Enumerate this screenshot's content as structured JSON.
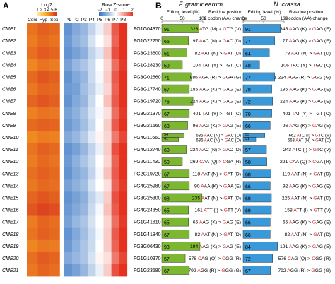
{
  "panel_a": {
    "letter": "A",
    "log2_legend": {
      "title": "Log2",
      "ticks": [
        "1",
        "2",
        "3",
        "4",
        "5",
        "6"
      ]
    },
    "zscore_legend": {
      "title": "Row Z-score",
      "ticks": [
        "−2",
        "−1",
        "0",
        "1",
        "2"
      ]
    },
    "columns_left": [
      "Coni",
      "Hyp",
      "Sex"
    ],
    "columns_right": [
      "P1",
      "P2",
      "P3",
      "P4",
      "P5",
      "P6",
      "P7",
      "P8"
    ],
    "rows": [
      "CME1",
      "CME2",
      "CME3",
      "CME4",
      "CME5",
      "CME6",
      "CME7",
      "CME8",
      "CME9",
      "CME10",
      "CME11",
      "CME12",
      "CME13",
      "CME14",
      "CME15",
      "CME16",
      "CME17",
      "CME18",
      "CME19",
      "CME20",
      "CME21"
    ],
    "log2_values": [
      [
        4.6,
        5.0,
        4.8
      ],
      [
        4.4,
        4.8,
        4.6
      ],
      [
        4.7,
        5.1,
        4.9
      ],
      [
        4.2,
        4.6,
        4.4
      ],
      [
        4.8,
        5.2,
        5.0
      ],
      [
        4.5,
        4.9,
        4.8
      ],
      [
        4.9,
        5.2,
        5.0
      ],
      [
        4.3,
        4.6,
        4.5
      ],
      [
        4.8,
        5.0,
        4.9
      ],
      [
        4.1,
        4.4,
        4.3
      ],
      [
        4.6,
        5.0,
        4.8
      ],
      [
        4.4,
        4.8,
        4.6
      ],
      [
        4.7,
        5.0,
        4.8
      ],
      [
        4.5,
        4.8,
        4.7
      ],
      [
        4.9,
        5.2,
        5.0
      ],
      [
        5.2,
        5.6,
        5.4
      ],
      [
        4.4,
        4.9,
        4.7
      ],
      [
        4.6,
        5.0,
        4.8
      ],
      [
        4.2,
        4.5,
        4.4
      ],
      [
        4.7,
        5.1,
        4.9
      ],
      [
        4.5,
        4.9,
        4.7
      ]
    ],
    "zscore_values": [
      [
        -1.5,
        -1.2,
        -1.0,
        -0.6,
        -0.2,
        0.5,
        1.6,
        2.0
      ],
      [
        -1.4,
        -1.1,
        -0.9,
        -0.4,
        0.0,
        0.3,
        1.5,
        2.0
      ],
      [
        -1.5,
        -1.3,
        -1.1,
        -0.6,
        -0.3,
        0.6,
        1.7,
        2.0
      ],
      [
        -1.3,
        -1.0,
        -0.8,
        -0.5,
        0.0,
        0.4,
        1.4,
        1.9
      ],
      [
        -1.5,
        -1.2,
        -1.0,
        -0.5,
        -0.1,
        0.5,
        1.6,
        2.0
      ],
      [
        -1.4,
        -1.3,
        -0.9,
        -0.6,
        -0.2,
        0.4,
        1.5,
        2.0
      ],
      [
        -1.5,
        -1.2,
        -1.0,
        -0.5,
        0.0,
        0.6,
        1.6,
        2.0
      ],
      [
        -1.3,
        -1.1,
        -0.8,
        -0.4,
        -0.1,
        0.3,
        1.4,
        1.9
      ],
      [
        -1.4,
        -1.2,
        -0.9,
        -0.5,
        0.0,
        0.5,
        1.6,
        2.0
      ],
      [
        -1.2,
        -1.0,
        -0.7,
        -0.3,
        0.1,
        0.4,
        1.3,
        1.8
      ],
      [
        -1.5,
        -1.3,
        -1.0,
        -0.6,
        -0.2,
        0.5,
        1.7,
        2.0
      ],
      [
        -1.4,
        -1.1,
        -0.8,
        -0.5,
        0.0,
        0.4,
        1.5,
        2.0
      ],
      [
        -1.5,
        -1.2,
        -1.0,
        -0.6,
        -0.1,
        0.6,
        1.6,
        2.0
      ],
      [
        -1.3,
        -1.1,
        -0.9,
        -0.4,
        0.0,
        0.3,
        1.5,
        1.9
      ],
      [
        -1.5,
        -1.3,
        -1.1,
        -0.6,
        -0.3,
        0.5,
        1.7,
        2.0
      ],
      [
        -1.4,
        -1.2,
        -1.0,
        -0.5,
        -0.1,
        0.6,
        1.6,
        2.0
      ],
      [
        -1.3,
        -1.0,
        -0.8,
        -0.4,
        0.0,
        0.4,
        1.4,
        1.9
      ],
      [
        -1.5,
        -1.2,
        -0.9,
        -0.5,
        -0.1,
        0.5,
        1.6,
        2.0
      ],
      [
        -1.4,
        -1.1,
        -0.8,
        -0.5,
        0.0,
        0.5,
        1.5,
        2.0
      ],
      [
        -1.2,
        -1.0,
        -0.8,
        -0.4,
        0.1,
        0.3,
        1.3,
        1.8
      ],
      [
        -1.5,
        -1.3,
        -1.0,
        -0.6,
        -0.2,
        0.5,
        1.7,
        2.0
      ]
    ]
  },
  "panel_b": {
    "letter": "B",
    "species_fg": "F. graminearum",
    "species_nc": "N. crassa",
    "header_level": "Editing level (%)",
    "header_residue": "Residue position",
    "header_change": "& codon (AA) change",
    "axis_ticks": [
      "0",
      "50",
      "100"
    ],
    "bar_color_fg": "#7cb82f",
    "bar_color_nc": "#3a9ad9",
    "rows": [
      {
        "gene": "FG1G04370",
        "fg_level": 91,
        "fg_pos": "323",
        "fg_from": "ATG",
        "fg_from_aa": "(M)",
        "fg_to": "GTG",
        "fg_to_aa": "(V)",
        "nc_level": 91,
        "nc_pos": "345",
        "nc_from": "AAG",
        "nc_from_aa": "(K)",
        "nc_to": "GAG",
        "nc_to_aa": "(E)"
      },
      {
        "gene": "FG1G22250",
        "fg_level": 65,
        "fg_pos": "97",
        "fg_from": "AAC",
        "fg_from_aa": "(N)",
        "fg_to": "GAC",
        "fg_to_aa": "(D)",
        "nc_level": 77,
        "nc_pos": "77",
        "nc_from": "AAG",
        "nc_from_aa": "(K)",
        "nc_to": "GAG",
        "nc_to_aa": "(E)"
      },
      {
        "gene": "FG3G23600",
        "fg_level": 61,
        "fg_pos": "82",
        "fg_from": "AAT",
        "fg_from_aa": "(N)",
        "fg_to": "GAT",
        "fg_to_aa": "(D)",
        "nc_level": 64,
        "nc_pos": "78",
        "nc_from": "AAT",
        "nc_from_aa": "(N)",
        "nc_to": "GAT",
        "nc_to_aa": "(D)"
      },
      {
        "gene": "FG1G28230",
        "fg_level": 50,
        "fg_pos": "104",
        "fg_from": "TAT",
        "fg_from_aa": "(Y)",
        "fg_to": "TGT",
        "fg_to_aa": "(C)",
        "nc_level": 40,
        "nc_pos": "106",
        "nc_from": "TAC",
        "nc_from_aa": "(Y)",
        "nc_to": "TGC",
        "nc_to_aa": "(C)"
      },
      {
        "gene": "FG3G02660",
        "fg_level": 71,
        "fg_pos": "986",
        "fg_from": "AGA",
        "fg_from_aa": "(R)",
        "fg_to": "GGA",
        "fg_to_aa": "(G)",
        "nc_level": 77,
        "nc_pos": "1 224",
        "nc_from": "AGG",
        "nc_from_aa": "(R)",
        "nc_to": "GGG",
        "nc_to_aa": "(G)"
      },
      {
        "gene": "FG3G17740",
        "fg_level": 67,
        "fg_pos": "185",
        "fg_from": "AAG",
        "fg_from_aa": "(K)",
        "fg_to": "GAG",
        "fg_to_aa": "(E)",
        "nc_level": 70,
        "nc_pos": "185",
        "nc_from": "AAG",
        "nc_from_aa": "(K)",
        "nc_to": "GAG",
        "nc_to_aa": "(E)"
      },
      {
        "gene": "FG3G19720",
        "fg_level": 76,
        "fg_pos": "224",
        "fg_from": "AAG",
        "fg_from_aa": "(K)",
        "fg_to": "GAG",
        "fg_to_aa": "(E)",
        "nc_level": 72,
        "nc_pos": "224",
        "nc_from": "AAG",
        "nc_from_aa": "(K)",
        "nc_to": "GAG",
        "nc_to_aa": "(E)"
      },
      {
        "gene": "FG3G21370",
        "fg_level": 67,
        "fg_pos": "401",
        "fg_from": "TAT",
        "fg_from_aa": "(Y)",
        "fg_to": "TGT",
        "fg_to_aa": "(C)",
        "nc_level": 70,
        "nc_pos": "401",
        "nc_from": "TAT",
        "nc_from_aa": "(Y)",
        "nc_to": "TGT",
        "nc_to_aa": "(C)"
      },
      {
        "gene": "FG3G21560",
        "fg_level": 63,
        "fg_pos": "96",
        "fg_from": "AAG",
        "fg_from_aa": "(K)",
        "fg_to": "GAG",
        "fg_to_aa": "(E)",
        "nc_level": 66,
        "nc_pos": "96",
        "nc_from": "AAG",
        "nc_from_aa": "(K)",
        "nc_to": "GAG",
        "nc_to_aa": "(E)"
      },
      {
        "gene": "FG4G11660",
        "fg_level": 54,
        "fg_level2": 41,
        "fg_pos": "635",
        "fg_from": "AAC",
        "fg_from_aa": "(N)",
        "fg_to": "GAC",
        "fg_to_aa": "(D)",
        "fg_pos2": "636",
        "fg_from2": "AAC",
        "fg_from_aa2": "(N)",
        "fg_to2": "GAC",
        "fg_to_aa2": "(D)",
        "nc_level": 53,
        "nc_level2": 31,
        "nc_pos": "662",
        "nc_from": "ATC",
        "nc_from_aa": "(I)",
        "nc_to": "GTC",
        "nc_to_aa": "(V)",
        "nc_pos2": "663",
        "nc_from2": "AAT",
        "nc_from_aa2": "(N)",
        "nc_to2": "GAT",
        "nc_to_aa2": "(D)"
      },
      {
        "gene": "FG4G12740",
        "fg_level": 60,
        "fg_pos": "224",
        "fg_from": "AAC",
        "fg_from_aa": "(N)",
        "fg_to": "GAC",
        "fg_to_aa": "(D)",
        "nc_level": 57,
        "nc_pos": "243",
        "nc_from": "ATC",
        "nc_from_aa": "(I)",
        "nc_to": "GTC",
        "nc_to_aa": "(V)"
      },
      {
        "gene": "FG2G11430",
        "fg_level": 50,
        "fg_pos": "269",
        "fg_from": "CAA",
        "fg_from_aa": "(Q)",
        "fg_to": "CGA",
        "fg_to_aa": "(R)",
        "nc_level": 58,
        "nc_pos": "221",
        "nc_from": "CAA",
        "nc_from_aa": "(Q)",
        "nc_to": "CGA",
        "nc_to_aa": "(R)"
      },
      {
        "gene": "FG2G19720",
        "fg_level": 67,
        "fg_pos": "118",
        "fg_from": "AAT",
        "fg_from_aa": "(N)",
        "fg_to": "GAT",
        "fg_to_aa": "(D)",
        "nc_level": 68,
        "nc_pos": "119",
        "nc_from": "AAT",
        "nc_from_aa": "(N)",
        "nc_to": "GAT",
        "nc_to_aa": "(D)"
      },
      {
        "gene": "FG4G25980",
        "fg_level": 67,
        "fg_pos": "90",
        "fg_from": "AAA",
        "fg_from_aa": "(K)",
        "fg_to": "GAA",
        "fg_to_aa": "(E)",
        "nc_level": 66,
        "nc_pos": "92",
        "nc_from": "AAG",
        "nc_from_aa": "(K)",
        "nc_to": "GAG",
        "nc_to_aa": "(E)"
      },
      {
        "gene": "FG3G25300",
        "fg_level": 98,
        "fg_pos": "235",
        "fg_from": "AAT",
        "fg_from_aa": "(N)",
        "fg_to": "GAT",
        "fg_to_aa": "(D)",
        "nc_level": 69,
        "nc_pos": "225",
        "nc_from": "AAT",
        "nc_from_aa": "(N)",
        "nc_to": "GAT",
        "nc_to_aa": "(D)"
      },
      {
        "gene": "FG4G24350",
        "fg_level": 65,
        "fg_pos": "161",
        "fg_from": "ATT",
        "fg_from_aa": "(I)",
        "fg_to": "GTT",
        "fg_to_aa": "(V)",
        "nc_level": 69,
        "nc_pos": "158",
        "nc_from": "ATT",
        "nc_from_aa": "(I)",
        "nc_to": "GTT",
        "nc_to_aa": "(V)"
      },
      {
        "gene": "FG1G41810",
        "fg_level": 65,
        "fg_pos": "65",
        "fg_from": "AAG",
        "fg_from_aa": "(K)",
        "fg_to": "GAG",
        "fg_to_aa": "(E)",
        "nc_level": 66,
        "nc_pos": "65",
        "nc_from": "AAG",
        "nc_from_aa": "(K)",
        "nc_to": "GAG",
        "nc_to_aa": "(E)"
      },
      {
        "gene": "FG1G41840",
        "fg_level": 67,
        "fg_pos": "82",
        "fg_from": "AAT",
        "fg_from_aa": "(N)",
        "fg_to": "GAT",
        "fg_to_aa": "(D)",
        "nc_level": 66,
        "nc_pos": "82",
        "nc_from": "AAT",
        "nc_from_aa": "(N)",
        "nc_to": "GAT",
        "nc_to_aa": "(D)"
      },
      {
        "gene": "FG3G06430",
        "fg_level": 93,
        "fg_pos": "194",
        "fg_from": "AAG",
        "fg_from_aa": "(K)",
        "fg_to": "GAG",
        "fg_to_aa": "(E)",
        "nc_level": 84,
        "nc_pos": "191",
        "nc_from": "AAG",
        "nc_from_aa": "(K)",
        "nc_to": "GAG",
        "nc_to_aa": "(E)"
      },
      {
        "gene": "FG1G10370",
        "fg_level": 57,
        "fg_pos": "576",
        "fg_from": "CAG",
        "fg_from_aa": "(Q)",
        "fg_to": "CGG",
        "fg_to_aa": "(R)",
        "nc_level": 72,
        "nc_pos": "576",
        "nc_from": "CAG",
        "nc_from_aa": "(Q)",
        "nc_to": "CGG",
        "nc_to_aa": "(R)"
      },
      {
        "gene": "FG1G23580",
        "fg_level": 67,
        "fg_pos": "792",
        "fg_from": "AGG",
        "fg_from_aa": "(R)",
        "fg_to": "GGG",
        "fg_to_aa": "(G)",
        "nc_level": 67,
        "nc_pos": "792",
        "nc_from": "AGG",
        "nc_from_aa": "(R)",
        "nc_to": "GGG",
        "nc_to_aa": "(G)"
      }
    ]
  },
  "colors": {
    "log2_low": "#fdf0a8",
    "log2_mid": "#f7a722",
    "log2_high": "#d7301f",
    "z_low": "#2f6fc0",
    "z_mid": "#ffffff",
    "z_high": "#e4321f",
    "edit_red": "#d92020"
  }
}
